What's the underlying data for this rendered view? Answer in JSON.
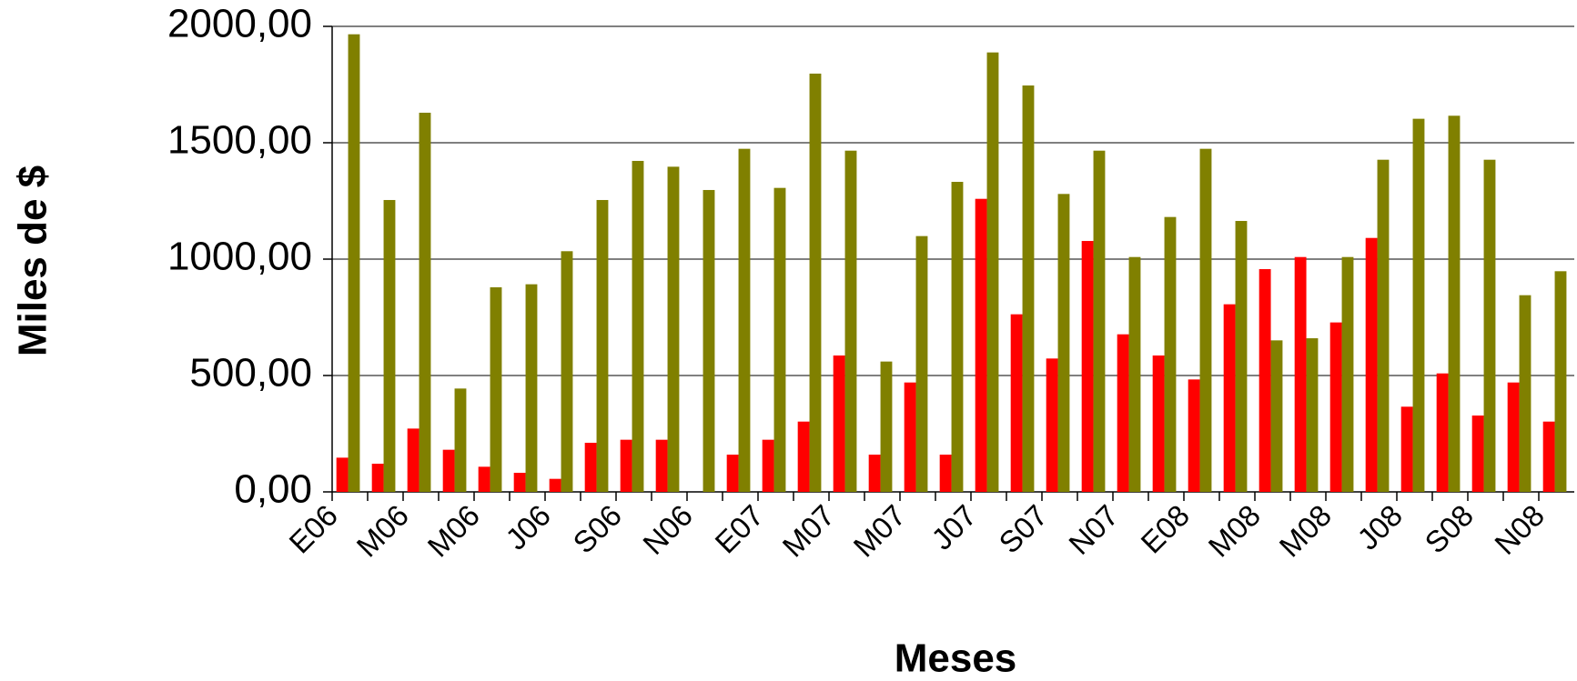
{
  "chart_data": {
    "type": "bar",
    "x_label": "Meses",
    "y_label": "Miles de $",
    "categories": [
      "E06",
      null,
      "M06",
      null,
      "M06",
      null,
      "J06",
      null,
      "S06",
      null,
      "N06",
      null,
      "E07",
      null,
      "M07",
      null,
      "M07",
      null,
      "J07",
      null,
      "S07",
      null,
      "N07",
      null,
      "E08",
      null,
      "M08",
      null,
      "M08",
      null,
      "J08",
      null,
      "S08",
      null,
      "N08"
    ],
    "series": [
      {
        "color": "#ff0000",
        "values": [
          147,
          121,
          272,
          181,
          108,
          82,
          56,
          211,
          224,
          224,
          0,
          160,
          224,
          302,
          586,
          160,
          470,
          160,
          1259,
          763,
          573,
          1078,
          677,
          586,
          483,
          806,
          957,
          1009,
          728,
          1091,
          366,
          509,
          328,
          470,
          302
        ]
      },
      {
        "color": "#808000",
        "values": [
          1966,
          1254,
          1629,
          444,
          879,
          892,
          1034,
          1254,
          1422,
          1397,
          1297,
          1474,
          1306,
          1797,
          1466,
          560,
          1099,
          1332,
          1888,
          1746,
          1280,
          1466,
          1009,
          1181,
          1474,
          1164,
          651,
          660,
          1009,
          1427,
          1603,
          1616,
          1427,
          845,
          948
        ]
      }
    ],
    "ylim": [
      0,
      2000
    ],
    "yticks": [
      {
        "value": 0,
        "label": "0,00"
      },
      {
        "value": 500,
        "label": "500,00"
      },
      {
        "value": 1000,
        "label": "1000,00"
      },
      {
        "value": 1500,
        "label": "1500,00"
      },
      {
        "value": 2000,
        "label": "2000,00"
      }
    ],
    "grid": true
  }
}
